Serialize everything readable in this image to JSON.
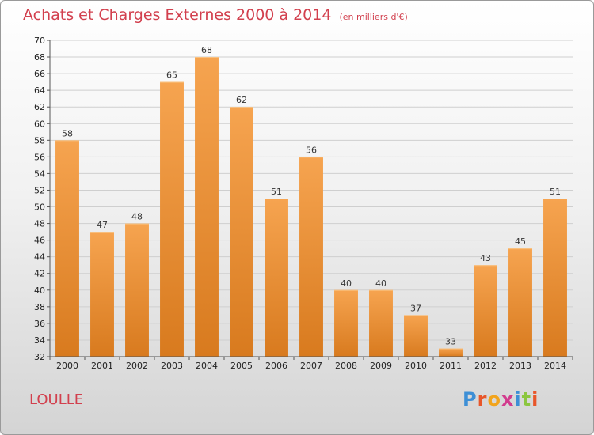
{
  "title": "Achats et Charges Externes 2000 à 2014",
  "unit": "(en milliers d'€)",
  "location": "LOULLE",
  "logo": "Proxiti",
  "colors": {
    "bar_top": "#f6a450",
    "bar_bottom": "#d87a1e",
    "title": "#d2404e"
  },
  "chart_data": {
    "type": "bar",
    "title": "Achats et Charges Externes 2000 à 2014",
    "subtitle": "(en milliers d'€)",
    "categories": [
      "2000",
      "2001",
      "2002",
      "2003",
      "2004",
      "2005",
      "2006",
      "2007",
      "2008",
      "2009",
      "2010",
      "2011",
      "2012",
      "2013",
      "2014"
    ],
    "values": [
      58,
      47,
      48,
      65,
      68,
      62,
      51,
      56,
      40,
      40,
      37,
      33,
      43,
      45,
      51
    ],
    "ylim": [
      32,
      70
    ],
    "yticks": [
      32,
      34,
      36,
      38,
      40,
      42,
      44,
      46,
      48,
      50,
      52,
      54,
      56,
      58,
      60,
      62,
      64,
      66,
      68,
      70
    ],
    "grid": true,
    "data_labels": true
  }
}
